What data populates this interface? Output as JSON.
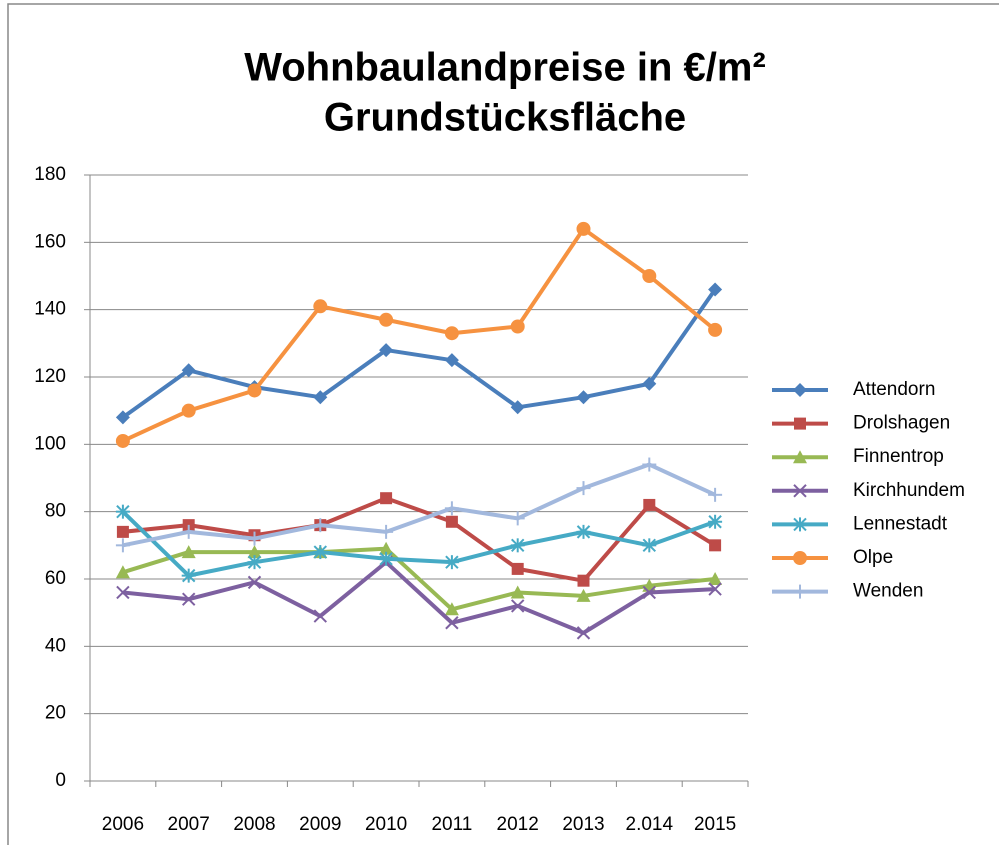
{
  "chart_data": {
    "type": "line",
    "title": "Wohnbaulandpreise in €/m²",
    "subtitle": "Grundstücksfläche",
    "categories": [
      "2006",
      "2007",
      "2008",
      "2009",
      "2010",
      "2011",
      "2012",
      "2013",
      "2.014",
      "2015"
    ],
    "series": [
      {
        "name": "Attendorn",
        "color": "#4a7ebb",
        "marker": "diamond",
        "values": [
          108,
          122,
          117,
          114,
          128,
          125,
          111,
          114,
          118,
          146
        ]
      },
      {
        "name": "Drolshagen",
        "color": "#be4b48",
        "marker": "square",
        "values": [
          74,
          76,
          73,
          76,
          84,
          77,
          63,
          59.5,
          82,
          70
        ]
      },
      {
        "name": "Finnentrop",
        "color": "#98b954",
        "marker": "triangle",
        "values": [
          62,
          68,
          68,
          68,
          69,
          51,
          56,
          55,
          58,
          60
        ]
      },
      {
        "name": "Kirchhundem",
        "color": "#7d60a0",
        "marker": "x",
        "values": [
          56,
          54,
          59,
          49,
          65,
          47,
          52,
          44,
          56,
          57
        ]
      },
      {
        "name": "Lennestadt",
        "color": "#46aac5",
        "marker": "asterisk",
        "values": [
          80,
          61,
          65,
          68,
          66,
          65,
          70,
          74,
          70,
          77
        ]
      },
      {
        "name": "Olpe",
        "color": "#f69240",
        "marker": "circle",
        "values": [
          101,
          110,
          116,
          141,
          137,
          133,
          135,
          164,
          150,
          134
        ]
      },
      {
        "name": "Wenden",
        "color": "#a2b8dd",
        "marker": "plus",
        "values": [
          70,
          74,
          72,
          76,
          74,
          81,
          78,
          87,
          94,
          85
        ]
      }
    ],
    "ylim": [
      0,
      180
    ],
    "yticks": [
      0,
      20,
      40,
      60,
      80,
      100,
      120,
      140,
      160,
      180
    ],
    "grid": true,
    "legend": "right"
  }
}
